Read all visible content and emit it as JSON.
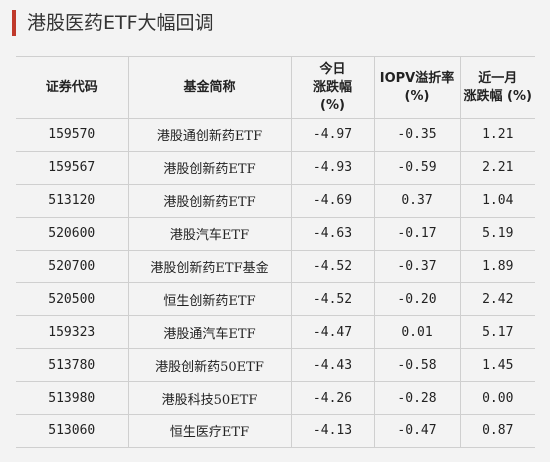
{
  "title": "港股医药ETF大幅回调",
  "accent_color": "#c0392b",
  "table": {
    "headers": [
      [
        "证券代码"
      ],
      [
        "基金简称"
      ],
      [
        "今日",
        "涨跌幅",
        "(%)"
      ],
      [
        "IOPV溢折率",
        "(%)"
      ],
      [
        "近一月",
        "涨跌幅 (%)"
      ]
    ],
    "rows": [
      [
        "159570",
        "港股通创新药ETF",
        "-4.97",
        "-0.35",
        "1.21"
      ],
      [
        "159567",
        "港股创新药ETF",
        "-4.93",
        "-0.59",
        "2.21"
      ],
      [
        "513120",
        "港股创新药ETF",
        "-4.69",
        "0.37",
        "1.04"
      ],
      [
        "520600",
        "港股汽车ETF",
        "-4.63",
        "-0.17",
        "5.19"
      ],
      [
        "520700",
        "港股创新药ETF基金",
        "-4.52",
        "-0.37",
        "1.89"
      ],
      [
        "520500",
        "恒生创新药ETF",
        "-4.52",
        "-0.20",
        "2.42"
      ],
      [
        "159323",
        "港股通汽车ETF",
        "-4.47",
        "0.01",
        "5.17"
      ],
      [
        "513780",
        "港股创新药50ETF",
        "-4.43",
        "-0.58",
        "1.45"
      ],
      [
        "513980",
        "港股科技50ETF",
        "-4.26",
        "-0.28",
        "0.00"
      ],
      [
        "513060",
        "恒生医疗ETF",
        "-4.13",
        "-0.47",
        "0.87"
      ]
    ]
  }
}
